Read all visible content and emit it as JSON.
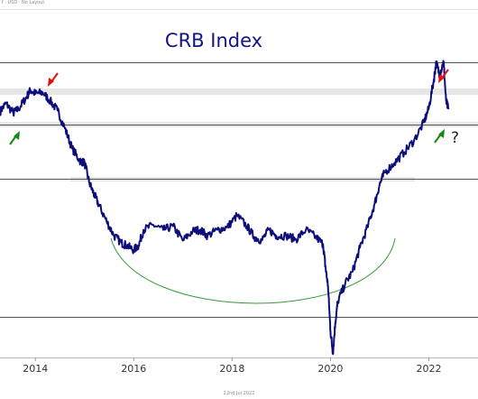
{
  "header": {
    "info_text": "f · USD · No Layout"
  },
  "chart_data": {
    "type": "line",
    "title": "CRB Index",
    "xlabel": "",
    "ylabel": "",
    "x_ticks": [
      "2014",
      "2016",
      "2018",
      "2020",
      "2022"
    ],
    "xlim": [
      2013.28,
      2023.0
    ],
    "ylim": [
      108,
      400
    ],
    "series": [
      {
        "color": "#0d0d7a",
        "x": [
          2013.28,
          2013.4,
          2013.55,
          2013.65,
          2013.8,
          2013.9,
          2014.0,
          2014.15,
          2014.3,
          2014.45,
          2014.6,
          2014.75,
          2014.9,
          2015.0,
          2015.1,
          2015.2,
          2015.3,
          2015.45,
          2015.6,
          2015.75,
          2015.85,
          2016.0,
          2016.1,
          2016.2,
          2016.4,
          2016.6,
          2016.8,
          2017.0,
          2017.2,
          2017.35,
          2017.5,
          2017.7,
          2017.9,
          2018.1,
          2018.3,
          2018.45,
          2018.6,
          2018.75,
          2018.9,
          2019.1,
          2019.3,
          2019.5,
          2019.7,
          2019.85,
          2019.9,
          2019.95,
          2020.0,
          2020.05,
          2020.1,
          2020.15,
          2020.3,
          2020.45,
          2020.6,
          2020.75,
          2020.9,
          2021.0,
          2021.1,
          2021.3,
          2021.5,
          2021.7,
          2021.9,
          2022.0,
          2022.1,
          2022.15,
          2022.22,
          2022.3,
          2022.35,
          2022.4
        ],
        "values": [
          314,
          321,
          313,
          316,
          325,
          332,
          329,
          330,
          323,
          315,
          300,
          283,
          273,
          271,
          254,
          244,
          235,
          222,
          210,
          204,
          202,
          198,
          202,
          215,
          219,
          215,
          218,
          206,
          214,
          215,
          210,
          215,
          217,
          227,
          218,
          209,
          206,
          215,
          210,
          210,
          207,
          215,
          209,
          203,
          183,
          168,
          130,
          112,
          138,
          155,
          170,
          180,
          200,
          217,
          237,
          253,
          263,
          271,
          280,
          290,
          305,
          317,
          340,
          355,
          345,
          356,
          323,
          316
        ]
      }
    ],
    "annotations": {
      "question_mark": "?"
    }
  },
  "footer": {
    "date_text": "22nd Jul 2022"
  }
}
